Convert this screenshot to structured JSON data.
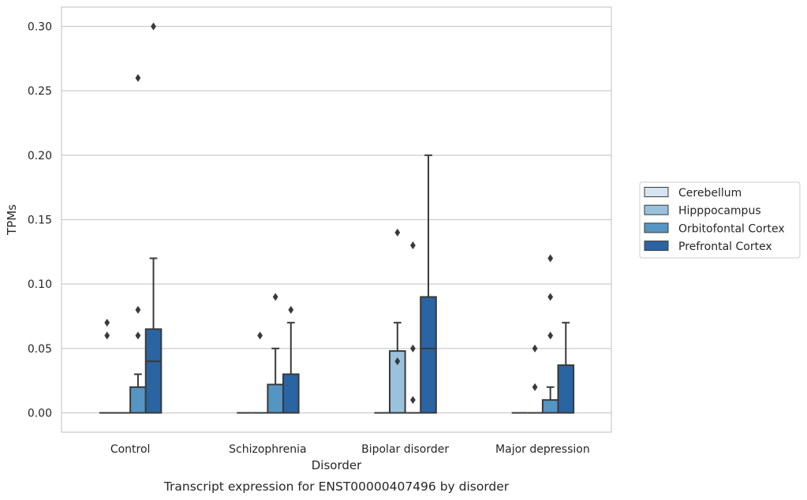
{
  "chart_data": {
    "type": "box",
    "caption": "Transcript expression for ENST00000407496 by disorder",
    "xlabel": "Disorder",
    "ylabel": "TPMs",
    "ylim": [
      -0.015,
      0.315
    ],
    "yticks": [
      "0.00",
      "0.05",
      "0.10",
      "0.15",
      "0.20",
      "0.25",
      "0.30"
    ],
    "grid": "horizontal",
    "legend_position": "right",
    "categories": [
      "Control",
      "Schizophrenia",
      "Bipolar disorder",
      "Major depression"
    ],
    "series": [
      {
        "name": "Cerebellum",
        "color": "#d6e4f0",
        "boxes": [
          {
            "q1": 0,
            "median": 0,
            "q3": 0,
            "whislo": 0,
            "whishi": 0,
            "fliers": []
          },
          {
            "q1": 0,
            "median": 0,
            "q3": 0,
            "whislo": 0,
            "whishi": 0,
            "fliers": []
          },
          {
            "q1": 0,
            "median": 0,
            "q3": 0,
            "whislo": 0,
            "whishi": 0,
            "fliers": []
          },
          {
            "q1": 0,
            "median": 0,
            "q3": 0,
            "whislo": 0,
            "whishi": 0,
            "fliers": []
          }
        ]
      },
      {
        "name": "Hipppocampus",
        "color": "#9ac2dd",
        "boxes": [
          {
            "q1": 0,
            "median": 0,
            "q3": 0,
            "whislo": 0,
            "whishi": 0,
            "fliers": []
          },
          {
            "q1": 0,
            "median": 0,
            "q3": 0,
            "whislo": 0,
            "whishi": 0,
            "fliers": []
          },
          {
            "q1": 0,
            "median": 0,
            "q3": 0.048,
            "whislo": 0,
            "whishi": 0.07,
            "fliers": [
              0.14,
              0.04
            ]
          },
          {
            "q1": 0,
            "median": 0,
            "q3": 0,
            "whislo": 0,
            "whishi": 0,
            "fliers": [
              0.05,
              0.02
            ]
          }
        ]
      },
      {
        "name": "Orbitofontal Cortex",
        "color": "#5495c3",
        "boxes": [
          {
            "q1": 0,
            "median": 0,
            "q3": 0.02,
            "whislo": 0,
            "whishi": 0.03,
            "fliers": [
              0.26,
              0.08,
              0.06
            ]
          },
          {
            "q1": 0,
            "median": 0,
            "q3": 0.022,
            "whislo": 0,
            "whishi": 0.05,
            "fliers": [
              0.09
            ]
          },
          {
            "q1": 0,
            "median": 0,
            "q3": 0,
            "whislo": 0,
            "whishi": 0,
            "fliers": [
              0.13,
              0.05,
              0.01
            ]
          },
          {
            "q1": 0,
            "median": 0,
            "q3": 0.01,
            "whislo": 0,
            "whishi": 0.02,
            "fliers": [
              0.12,
              0.09,
              0.06
            ]
          }
        ]
      },
      {
        "name": "Prefrontal Cortex",
        "color": "#2a64a2",
        "boxes": [
          {
            "q1": 0,
            "median": 0.04,
            "q3": 0.065,
            "whislo": 0,
            "whishi": 0.12,
            "fliers": [
              0.3
            ]
          },
          {
            "q1": 0,
            "median": 0,
            "q3": 0.03,
            "whislo": 0,
            "whishi": 0.07,
            "fliers": [
              0.08
            ]
          },
          {
            "q1": 0,
            "median": 0.05,
            "q3": 0.09,
            "whislo": 0,
            "whishi": 0.2,
            "fliers": []
          },
          {
            "q1": 0,
            "median": 0,
            "q3": 0.037,
            "whislo": 0,
            "whishi": 0.07,
            "fliers": []
          }
        ]
      }
    ],
    "extra_fliers": [
      {
        "category": 0,
        "series": 0,
        "values": [
          0.07,
          0.06
        ]
      },
      {
        "category": 1,
        "series": 1,
        "values": [
          0.06
        ]
      }
    ]
  }
}
